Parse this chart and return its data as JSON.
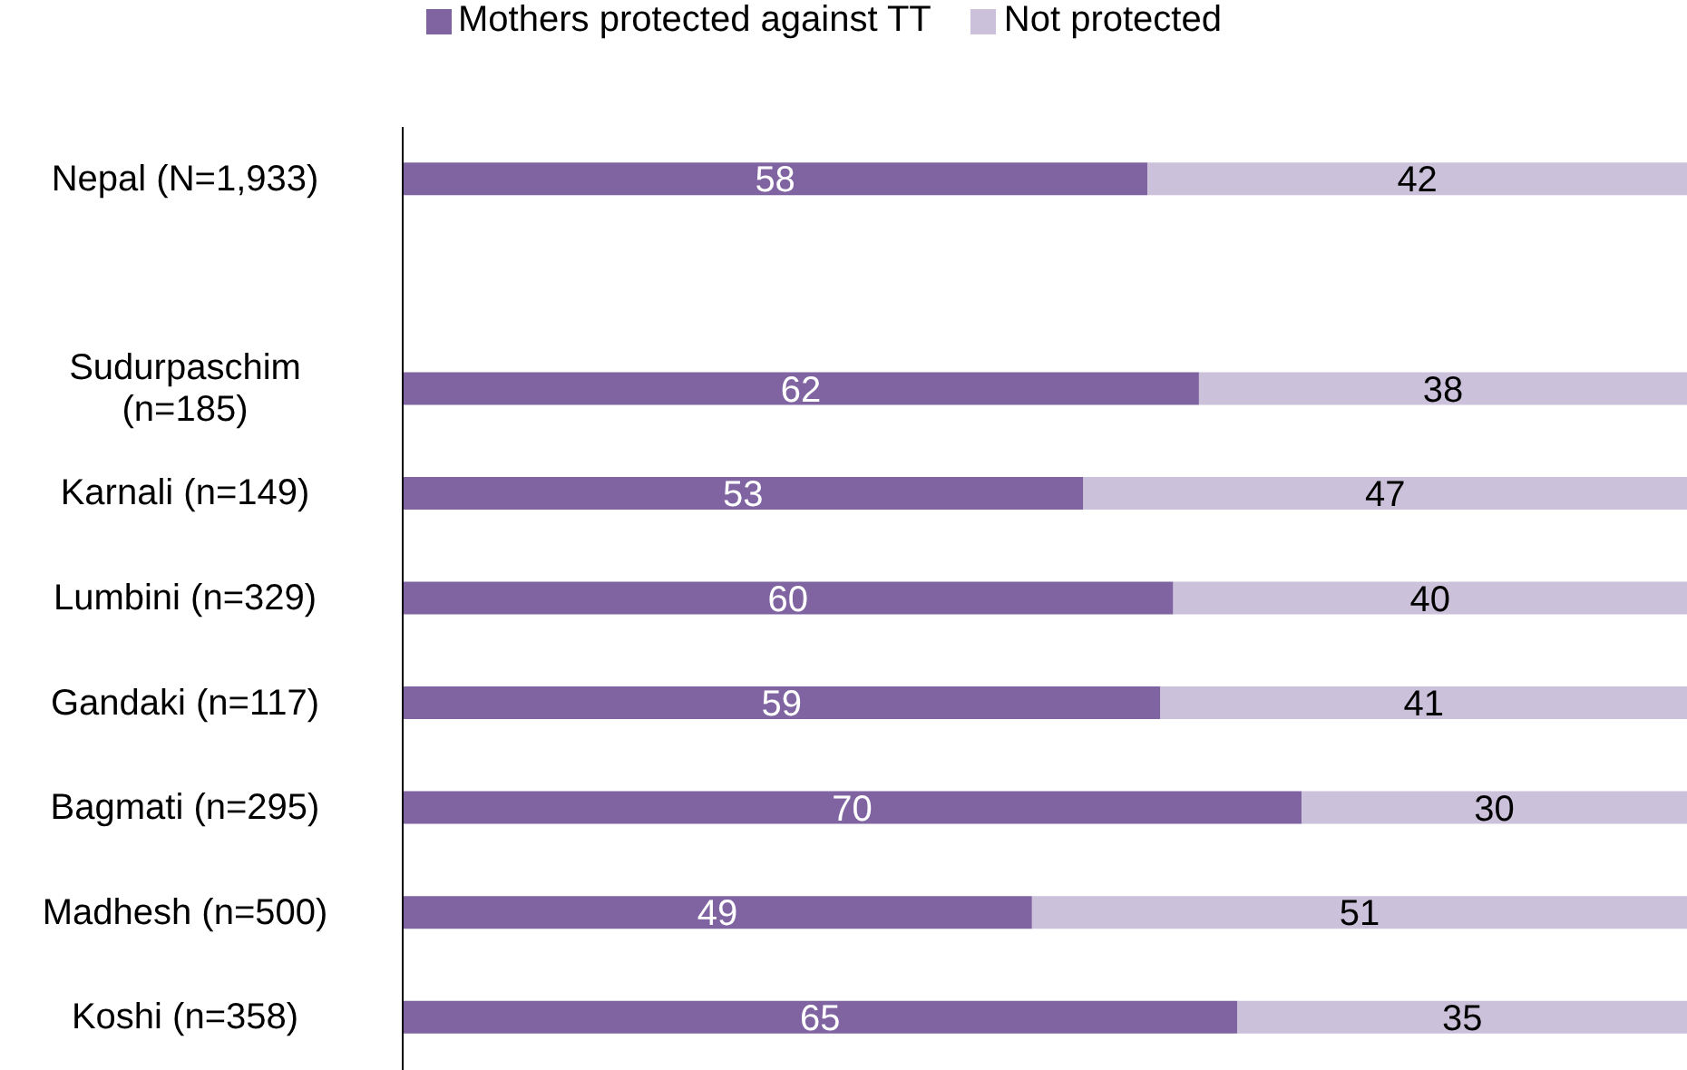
{
  "chart_data": {
    "type": "bar",
    "orientation": "horizontal",
    "stacked": true,
    "categories": [
      "Nepal (N=1,933)",
      null,
      "Sudurpaschim (n=185)",
      "Karnali (n=149)",
      "Lumbini (n=329)",
      "Gandaki (n=117)",
      "Bagmati (n=295)",
      "Madhesh (n=500)",
      "Koshi (n=358)"
    ],
    "series": [
      {
        "name": "Mothers protected against TT",
        "color": "#8064a2",
        "values": [
          58,
          null,
          62,
          53,
          60,
          59,
          70,
          49,
          65
        ]
      },
      {
        "name": "Not protected",
        "color": "#ccc1da",
        "values": [
          42,
          null,
          38,
          47,
          40,
          41,
          30,
          51,
          35
        ]
      }
    ],
    "xlim": [
      0,
      100
    ],
    "tick_labels": "y",
    "data_labels": true,
    "legend": "top",
    "grid": false
  }
}
